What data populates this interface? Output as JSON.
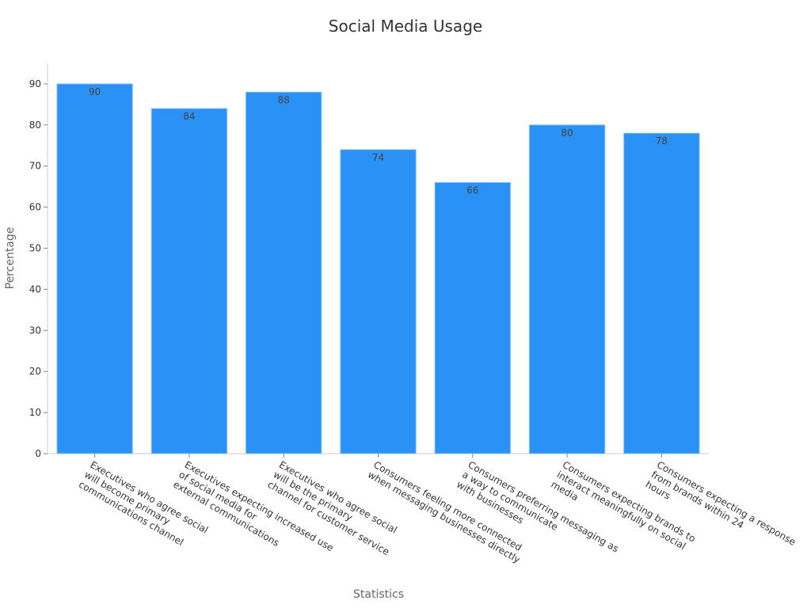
{
  "chart_data": {
    "type": "bar",
    "title": "Social Media Usage",
    "x_label": "Statistics",
    "y_label": "Percentage",
    "categories": [
      "Executives who agree social\nwill become primary\ncommunications channel",
      "Executives expecting increased use\nof social media for\nexternal communications",
      "Executives who agree social\nwill be the primary\nchannel for customer service",
      "Consumers feeling more connected\nwhen messaging businesses directly",
      "Consumers preferring messaging as\na way to communicate\nwith businesses",
      "Consumers expecting brands to\ninteract meaningfully on social\nmedia",
      "Consumers expecting a response\nfrom brands within 24\nhours"
    ],
    "values": [
      90,
      84,
      88,
      74,
      66,
      80,
      78
    ],
    "color": "#2a91f5",
    "ylim": [
      0,
      95
    ],
    "yticks": [
      0,
      10,
      20,
      30,
      40,
      50,
      60,
      70,
      80,
      90
    ]
  }
}
